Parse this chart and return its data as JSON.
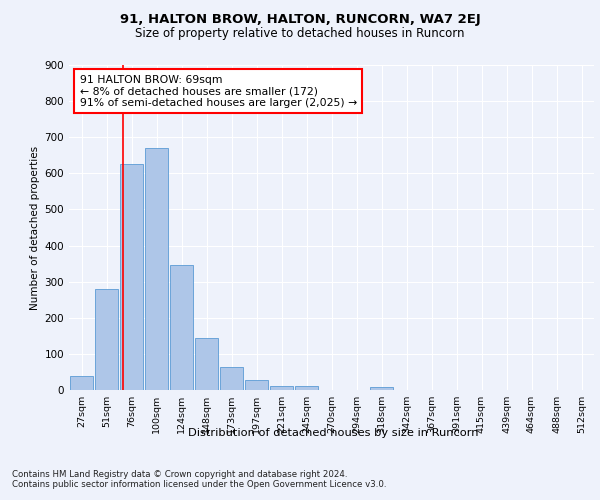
{
  "title1": "91, HALTON BROW, HALTON, RUNCORN, WA7 2EJ",
  "title2": "Size of property relative to detached houses in Runcorn",
  "xlabel": "Distribution of detached houses by size in Runcorn",
  "ylabel": "Number of detached properties",
  "bar_color": "#aec6e8",
  "bar_edge_color": "#5b9bd5",
  "categories": [
    "27sqm",
    "51sqm",
    "76sqm",
    "100sqm",
    "124sqm",
    "148sqm",
    "173sqm",
    "197sqm",
    "221sqm",
    "245sqm",
    "270sqm",
    "294sqm",
    "318sqm",
    "342sqm",
    "367sqm",
    "391sqm",
    "415sqm",
    "439sqm",
    "464sqm",
    "488sqm",
    "512sqm"
  ],
  "bar_values": [
    40,
    280,
    625,
    670,
    345,
    143,
    65,
    27,
    12,
    10,
    0,
    0,
    8,
    0,
    0,
    0,
    0,
    0,
    0,
    0,
    0
  ],
  "ylim": [
    0,
    900
  ],
  "yticks": [
    0,
    100,
    200,
    300,
    400,
    500,
    600,
    700,
    800,
    900
  ],
  "vline_x": 1.65,
  "annotation_text": "91 HALTON BROW: 69sqm\n← 8% of detached houses are smaller (172)\n91% of semi-detached houses are larger (2,025) →",
  "annotation_box_color": "white",
  "annotation_box_edge_color": "red",
  "vline_color": "red",
  "footnote": "Contains HM Land Registry data © Crown copyright and database right 2024.\nContains public sector information licensed under the Open Government Licence v3.0.",
  "bg_color": "#eef2fb",
  "plot_bg_color": "#eef2fb"
}
